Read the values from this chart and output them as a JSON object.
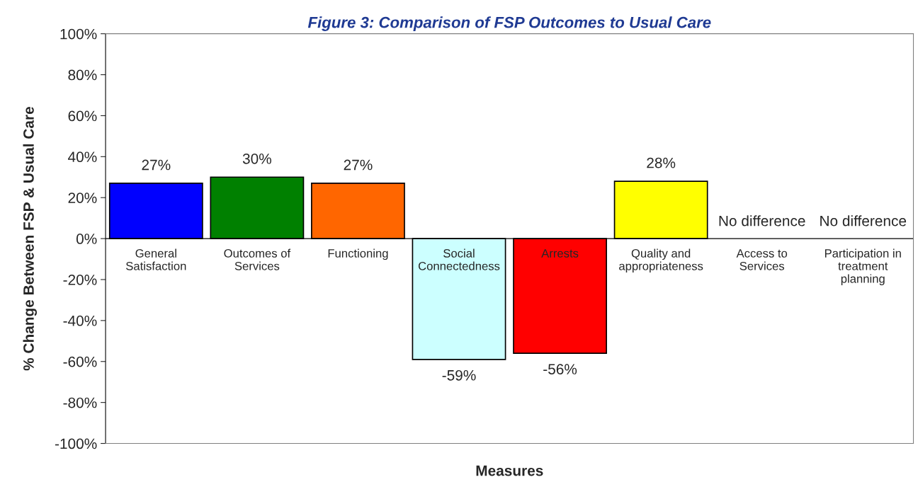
{
  "chart_data": {
    "type": "bar",
    "title": "Figure 3: Comparison of FSP Outcomes to Usual Care",
    "xlabel": "Measures",
    "ylabel": "% Change Between FSP & Usual Care",
    "categories": [
      "General\nSatisfaction",
      "Outcomes of\nServices",
      "Functioning",
      "Social\nConnectedness",
      "Arrests",
      "Quality and\nappropriateness",
      "Access to\nServices",
      "Participation in\ntreatment\nplanning"
    ],
    "values": [
      27,
      30,
      27,
      -59,
      -56,
      28,
      null,
      null
    ],
    "colors": [
      "#0000ff",
      "#008000",
      "#ff6600",
      "#ccffff",
      "#ff0000",
      "#ffff00",
      "#ffffff",
      "#ffffff"
    ],
    "value_labels": [
      "27%",
      "30%",
      "27%",
      "-59%",
      "-56%",
      "28%",
      "No difference",
      "No difference"
    ],
    "ylim": [
      -100,
      100
    ],
    "yticks": [
      {
        "value": -100,
        "label": "-100%"
      },
      {
        "value": -80,
        "label": "-80%"
      },
      {
        "value": -60,
        "label": "-60%"
      },
      {
        "value": -40,
        "label": "-40%"
      },
      {
        "value": -20,
        "label": "-20%"
      },
      {
        "value": 0,
        "label": "0%"
      },
      {
        "value": 20,
        "label": "20%"
      },
      {
        "value": 40,
        "label": "40%"
      },
      {
        "value": 60,
        "label": "60%"
      },
      {
        "value": 80,
        "label": "80%"
      },
      {
        "value": 100,
        "label": "100%"
      }
    ],
    "grid": false
  }
}
